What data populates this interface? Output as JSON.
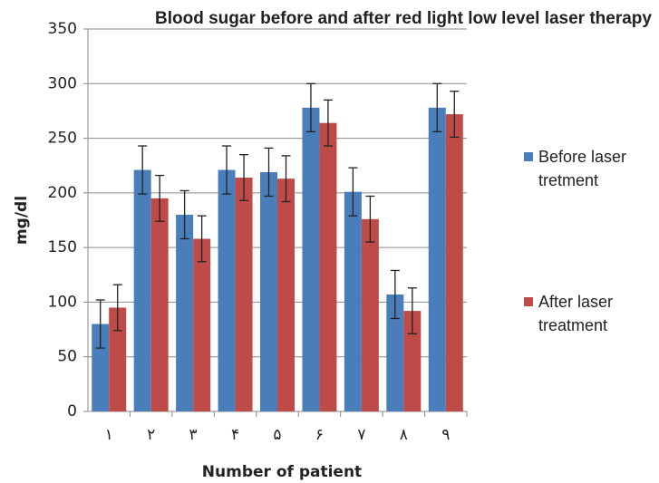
{
  "chart_data": {
    "type": "bar",
    "title": "Blood sugar before and after red light low level laser therapy",
    "x_label": "Number of patient",
    "y_label": "mg/dl",
    "categories": [
      "۱",
      "۲",
      "۳",
      "۴",
      "۵",
      "۶",
      "۷",
      "۸",
      "۹"
    ],
    "series": [
      {
        "name": "Before laser tretment",
        "color": "#4a7ebb",
        "values": [
          80,
          221,
          180,
          221,
          219,
          278,
          201,
          107,
          278
        ],
        "errors": [
          22,
          22,
          22,
          22,
          22,
          22,
          22,
          22,
          22
        ]
      },
      {
        "name": "After laser treatment",
        "color": "#be4b48",
        "values": [
          95,
          195,
          158,
          214,
          213,
          264,
          176,
          92,
          272
        ],
        "errors": [
          21,
          21,
          21,
          21,
          21,
          21,
          21,
          21,
          21
        ]
      }
    ],
    "ylim": [
      0,
      350
    ],
    "yticks": [
      0,
      50,
      100,
      150,
      200,
      250,
      300,
      350
    ],
    "grid": true
  }
}
